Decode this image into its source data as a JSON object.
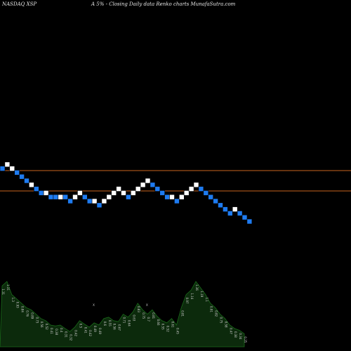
{
  "header": {
    "ticker": "NASDAQ XSP",
    "caption": "A 5% -   Closing Daily data  Renko  charts MunafaSutra.com"
  },
  "chart_data": {
    "type": "renko",
    "brick_size_label": "5%",
    "exchange": "NASDAQ",
    "symbol": "XSP",
    "colors": {
      "background": "#000000",
      "up_brick": "#ffffff",
      "down_brick": "#1e7bf0",
      "reference_line": "#c8641e",
      "volume_fill": "#0c2a0c",
      "volume_stroke": "#1a6b1a"
    },
    "reference_levels": [
      100,
      90
    ],
    "bricks": [
      {
        "dir": "down",
        "level": 101
      },
      {
        "dir": "up",
        "level": 103
      },
      {
        "dir": "up",
        "level": 101
      },
      {
        "dir": "down",
        "level": 99
      },
      {
        "dir": "down",
        "level": 97
      },
      {
        "dir": "down",
        "level": 95
      },
      {
        "dir": "up",
        "level": 93
      },
      {
        "dir": "down",
        "level": 91
      },
      {
        "dir": "down",
        "level": 89
      },
      {
        "dir": "up",
        "level": 89
      },
      {
        "dir": "down",
        "level": 87
      },
      {
        "dir": "down",
        "level": 87
      },
      {
        "dir": "up",
        "level": 87
      },
      {
        "dir": "down",
        "level": 87
      },
      {
        "dir": "down",
        "level": 85
      },
      {
        "dir": "up",
        "level": 87
      },
      {
        "dir": "up",
        "level": 89
      },
      {
        "dir": "down",
        "level": 87
      },
      {
        "dir": "down",
        "level": 85
      },
      {
        "dir": "up",
        "level": 85
      },
      {
        "dir": "down",
        "level": 83
      },
      {
        "dir": "up",
        "level": 85
      },
      {
        "dir": "up",
        "level": 87
      },
      {
        "dir": "up",
        "level": 89
      },
      {
        "dir": "up",
        "level": 91
      },
      {
        "dir": "up",
        "level": 89
      },
      {
        "dir": "down",
        "level": 87
      },
      {
        "dir": "up",
        "level": 89
      },
      {
        "dir": "up",
        "level": 91
      },
      {
        "dir": "up",
        "level": 93
      },
      {
        "dir": "up",
        "level": 95
      },
      {
        "dir": "down",
        "level": 93
      },
      {
        "dir": "down",
        "level": 91
      },
      {
        "dir": "down",
        "level": 89
      },
      {
        "dir": "down",
        "level": 87
      },
      {
        "dir": "up",
        "level": 87
      },
      {
        "dir": "down",
        "level": 85
      },
      {
        "dir": "up",
        "level": 87
      },
      {
        "dir": "up",
        "level": 89
      },
      {
        "dir": "up",
        "level": 91
      },
      {
        "dir": "up",
        "level": 93
      },
      {
        "dir": "down",
        "level": 91
      },
      {
        "dir": "down",
        "level": 89
      },
      {
        "dir": "down",
        "level": 87
      },
      {
        "dir": "down",
        "level": 85
      },
      {
        "dir": "down",
        "level": 83
      },
      {
        "dir": "down",
        "level": 81
      },
      {
        "dir": "down",
        "level": 79
      },
      {
        "dir": "up",
        "level": 81
      },
      {
        "dir": "down",
        "level": 79
      },
      {
        "dir": "down",
        "level": 77
      },
      {
        "dir": "down",
        "level": 75
      }
    ],
    "volume": {
      "values": [
        14,
        15,
        12,
        11,
        10,
        9,
        8.5,
        7.5,
        6.5,
        6,
        5,
        4.8,
        5,
        4.2,
        3.5,
        4.5,
        6,
        5.2,
        4.5,
        5.5,
        5,
        6.5,
        6.8,
        6,
        5.8,
        7.5,
        6.8,
        8,
        10,
        8.5,
        7.5,
        8.5,
        7,
        6,
        5.5,
        6.5,
        5,
        9,
        12,
        13,
        15,
        13.5,
        12,
        10,
        9,
        7.5,
        6.5,
        5,
        4.2,
        3.8,
        3
      ],
      "labels": [
        "1.31",
        "1.31",
        "1.3",
        "0.93",
        "0.84",
        "0.76",
        "0.89",
        "0.73",
        "0.56",
        "0.52",
        "0.41",
        "0.38",
        "0.4",
        "0.31",
        "0.32",
        "0.42",
        "0.5",
        "0.41",
        "0.42",
        "0.49",
        "0.49",
        "0.6",
        "0.55",
        "0.56",
        "0.67",
        "0.71",
        "0.64",
        "0.63",
        "0.83",
        "0.75",
        "0.7",
        "0.81",
        "0.66",
        "0.55",
        "0.52",
        "0.61",
        "0.45",
        "0.81",
        "0.97",
        "1.14",
        "1.36",
        "1.19",
        "1.1",
        "0.91",
        "0.82",
        "0.75",
        "0.58",
        "0.47",
        "0.38",
        "0.34",
        "0.25"
      ],
      "markers": [
        {
          "index": 19,
          "text": "X"
        },
        {
          "index": 30,
          "text": "X"
        }
      ]
    }
  }
}
